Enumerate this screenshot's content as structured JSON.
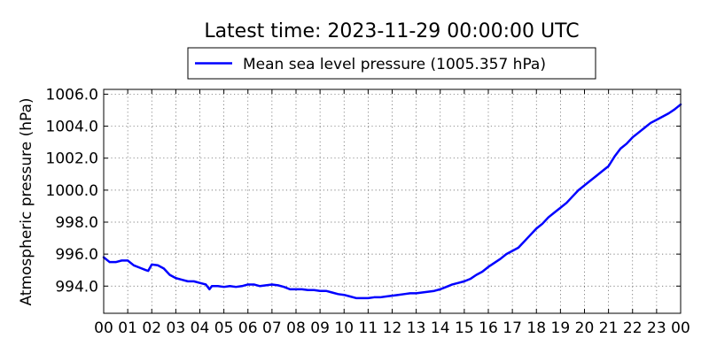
{
  "chart_data": {
    "type": "line",
    "title": "Latest time: 2023-11-29 00:00:00 UTC",
    "ylabel": "Atmospheric pressure (hPa)",
    "xlabel": "",
    "xlim": [
      0,
      24
    ],
    "ylim": [
      992.3,
      1006.3
    ],
    "yticks": [
      994.0,
      996.0,
      998.0,
      1000.0,
      1002.0,
      1004.0,
      1006.0
    ],
    "ytick_labels": [
      "994.0",
      "996.0",
      "998.0",
      "1000.0",
      "1002.0",
      "1004.0",
      "1006.0"
    ],
    "xticks": [
      0,
      1,
      2,
      3,
      4,
      5,
      6,
      7,
      8,
      9,
      10,
      11,
      12,
      13,
      14,
      15,
      16,
      17,
      18,
      19,
      20,
      21,
      22,
      23,
      24
    ],
    "xtick_labels": [
      "00",
      "01",
      "02",
      "03",
      "04",
      "05",
      "06",
      "07",
      "08",
      "09",
      "10",
      "11",
      "12",
      "13",
      "14",
      "15",
      "16",
      "17",
      "18",
      "19",
      "20",
      "21",
      "22",
      "23",
      "00"
    ],
    "grid": true,
    "legend_position": "top-center",
    "series": [
      {
        "name": "Mean sea level pressure (1005.357 hPa)",
        "color": "#0000ff",
        "x": [
          0.0,
          0.25,
          0.5,
          0.75,
          1.0,
          1.25,
          1.5,
          1.75,
          1.85,
          2.0,
          2.25,
          2.5,
          2.75,
          3.0,
          3.25,
          3.5,
          3.75,
          4.0,
          4.25,
          4.4,
          4.5,
          4.75,
          5.0,
          5.25,
          5.5,
          5.75,
          6.0,
          6.25,
          6.5,
          6.75,
          7.0,
          7.25,
          7.5,
          7.75,
          8.0,
          8.25,
          8.5,
          8.75,
          9.0,
          9.25,
          9.5,
          9.75,
          10.0,
          10.25,
          10.5,
          10.75,
          11.0,
          11.25,
          11.5,
          11.75,
          12.0,
          12.25,
          12.5,
          12.75,
          13.0,
          13.25,
          13.5,
          13.75,
          14.0,
          14.25,
          14.5,
          14.75,
          15.0,
          15.25,
          15.5,
          15.75,
          16.0,
          16.25,
          16.5,
          16.75,
          17.0,
          17.25,
          17.5,
          17.75,
          18.0,
          18.25,
          18.5,
          18.75,
          19.0,
          19.25,
          19.5,
          19.75,
          20.0,
          20.25,
          20.5,
          20.75,
          21.0,
          21.25,
          21.5,
          21.75,
          22.0,
          22.25,
          22.5,
          22.75,
          23.0,
          23.25,
          23.5,
          23.75,
          24.0
        ],
        "values": [
          995.8,
          995.5,
          995.5,
          995.6,
          995.6,
          995.3,
          995.15,
          995.0,
          994.95,
          995.35,
          995.3,
          995.1,
          994.7,
          994.5,
          994.4,
          994.3,
          994.3,
          994.2,
          994.1,
          993.8,
          994.0,
          994.0,
          993.95,
          994.0,
          993.95,
          994.0,
          994.1,
          994.1,
          994.0,
          994.05,
          994.1,
          994.05,
          993.95,
          993.8,
          993.8,
          993.8,
          993.75,
          993.75,
          993.7,
          993.7,
          993.6,
          993.5,
          993.45,
          993.35,
          993.25,
          993.25,
          993.25,
          993.3,
          993.3,
          993.35,
          993.4,
          993.45,
          993.5,
          993.55,
          993.55,
          993.6,
          993.65,
          993.7,
          993.8,
          993.95,
          994.1,
          994.2,
          994.3,
          994.45,
          994.7,
          994.9,
          995.2,
          995.45,
          995.7,
          996.0,
          996.2,
          996.4,
          996.8,
          997.2,
          997.6,
          997.9,
          998.3,
          998.6,
          998.9,
          999.2,
          999.6,
          1000.0,
          1000.3,
          1000.6,
          1000.9,
          1001.2,
          1001.5,
          1002.1,
          1002.6,
          1002.9,
          1003.3,
          1003.6,
          1003.9,
          1004.2,
          1004.4,
          1004.6,
          1004.8,
          1005.05,
          1005.357
        ]
      }
    ]
  }
}
